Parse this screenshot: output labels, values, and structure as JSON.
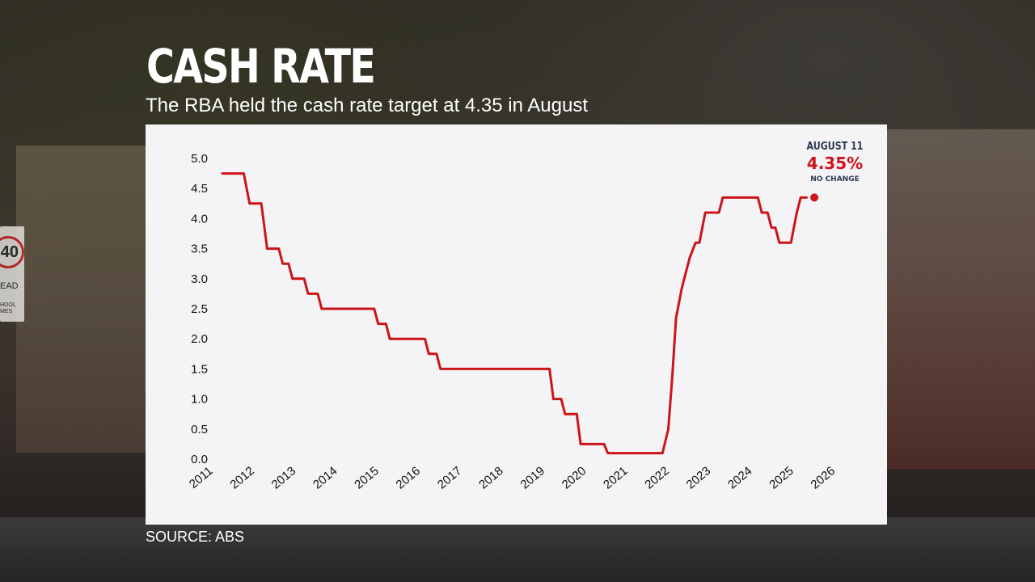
{
  "header": {
    "title": "CASH RATE",
    "subtitle": "The RBA held the cash rate target at 4.35 in August"
  },
  "callout": {
    "date": "AUGUST 11",
    "value": "4.35%",
    "note": "NO CHANGE"
  },
  "footer": {
    "source": "SOURCE: ABS"
  },
  "background_sign": {
    "number": "40",
    "text1": "EAD",
    "text2": "HOOL\nMES"
  },
  "colors": {
    "line": "#cc1417",
    "panel": "#f4f3f6",
    "text_dark": "#2d3b52",
    "accent": "#d0121a"
  },
  "chart_data": {
    "type": "line",
    "title": "",
    "xlabel": "",
    "ylabel": "",
    "ylim": [
      0,
      5.0
    ],
    "xlim": [
      2011,
      2026.8
    ],
    "y_ticks": [
      "0.0",
      "0.5",
      "1.0",
      "1.5",
      "2.0",
      "2.5",
      "3.0",
      "3.5",
      "4.0",
      "4.5",
      "5.0"
    ],
    "x_ticks": [
      "2011",
      "2012",
      "2013",
      "2014",
      "2015",
      "2016",
      "2017",
      "2018",
      "2019",
      "2020",
      "2021",
      "2022",
      "2023",
      "2024",
      "2025",
      "2026"
    ],
    "grid": false,
    "series": [
      {
        "name": "",
        "points": [
          [
            2011.0,
            4.75
          ],
          [
            2011.55,
            4.75
          ],
          [
            2011.7,
            4.25
          ],
          [
            2012.0,
            4.25
          ],
          [
            2012.15,
            3.5
          ],
          [
            2012.45,
            3.5
          ],
          [
            2012.55,
            3.25
          ],
          [
            2012.7,
            3.25
          ],
          [
            2012.8,
            3.0
          ],
          [
            2013.1,
            3.0
          ],
          [
            2013.2,
            2.75
          ],
          [
            2013.45,
            2.75
          ],
          [
            2013.55,
            2.5
          ],
          [
            2014.25,
            2.5
          ],
          [
            2014.8,
            2.5
          ],
          [
            2014.9,
            2.5
          ],
          [
            2015.0,
            2.25
          ],
          [
            2015.2,
            2.25
          ],
          [
            2015.3,
            2.0
          ],
          [
            2015.6,
            2.0
          ],
          [
            2016.2,
            2.0
          ],
          [
            2016.3,
            1.75
          ],
          [
            2016.5,
            1.75
          ],
          [
            2016.6,
            1.5
          ],
          [
            2017.5,
            1.5
          ],
          [
            2018.5,
            1.5
          ],
          [
            2019.4,
            1.5
          ],
          [
            2019.5,
            1.0
          ],
          [
            2019.7,
            1.0
          ],
          [
            2019.8,
            0.75
          ],
          [
            2020.1,
            0.75
          ],
          [
            2020.2,
            0.25
          ],
          [
            2020.8,
            0.25
          ],
          [
            2020.9,
            0.1
          ],
          [
            2021.5,
            0.1
          ],
          [
            2022.3,
            0.1
          ],
          [
            2022.45,
            0.5
          ],
          [
            2022.55,
            1.35
          ],
          [
            2022.65,
            2.35
          ],
          [
            2022.8,
            2.85
          ],
          [
            2023.0,
            3.35
          ],
          [
            2023.15,
            3.6
          ],
          [
            2023.25,
            3.6
          ],
          [
            2023.4,
            4.1
          ],
          [
            2023.75,
            4.1
          ],
          [
            2023.85,
            4.35
          ],
          [
            2024.4,
            4.35
          ],
          [
            2024.75,
            4.35
          ],
          [
            2024.85,
            4.1
          ],
          [
            2025.0,
            4.1
          ],
          [
            2025.1,
            3.85
          ],
          [
            2025.2,
            3.85
          ],
          [
            2025.3,
            3.6
          ],
          [
            2025.6,
            3.6
          ],
          [
            2025.75,
            4.1
          ],
          [
            2025.85,
            4.35
          ],
          [
            2026.0,
            4.35
          ]
        ]
      }
    ],
    "end_marker": [
      2026.2,
      4.35
    ]
  }
}
